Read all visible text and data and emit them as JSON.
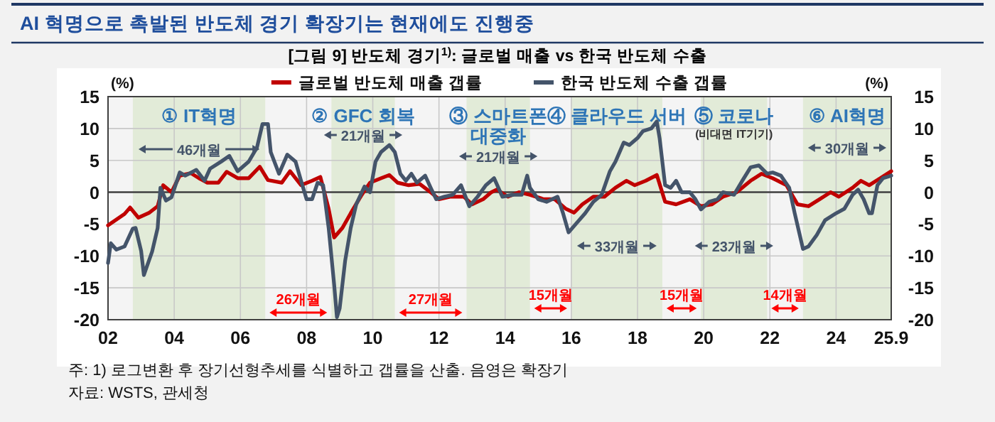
{
  "chart_data": {
    "type": "line",
    "title": "AI 혁명으로 촉발된 반도체 경기 확장기는 현재에도 진행중",
    "subtitle": "[그림 9] 반도체 경기$^{1)}$: 글로벌 매출 vs 한국 반도체 수출",
    "ylabel": "(%)",
    "y2label": "(%)",
    "xlim": [
      "2002-01",
      "2025-09"
    ],
    "ylim": [
      -20,
      15
    ],
    "y2lim": [
      -20,
      15
    ],
    "xticks": [
      {
        "value": "2002",
        "label": "02"
      },
      {
        "value": "2004",
        "label": "04"
      },
      {
        "value": "2006",
        "label": "06"
      },
      {
        "value": "2008",
        "label": "08"
      },
      {
        "value": "2010",
        "label": "10"
      },
      {
        "value": "2012",
        "label": "12"
      },
      {
        "value": "2014",
        "label": "14"
      },
      {
        "value": "2016",
        "label": "16"
      },
      {
        "value": "2018",
        "label": "18"
      },
      {
        "value": "2020",
        "label": "20"
      },
      {
        "value": "2022",
        "label": "22"
      },
      {
        "value": "2024",
        "label": "24"
      },
      {
        "value": "2025-09",
        "label": "25.9"
      }
    ],
    "yticks": [
      -20,
      -15,
      -10,
      -5,
      0,
      5,
      10,
      15
    ],
    "y2ticks": [
      -20,
      -15,
      -10,
      -5,
      0,
      5,
      10,
      15
    ],
    "grid": true,
    "legend": "top",
    "line_style": "solid",
    "series": [
      {
        "name": "글로벌 반도체 매출 갭률",
        "color": "#c00000",
        "x": [
          "2002-01",
          "2002-04",
          "2002-07",
          "2002-09",
          "2002-12",
          "2003-04",
          "2003-07",
          "2003-09",
          "2003-12",
          "2004-03",
          "2004-07",
          "2004-10",
          "2005-01",
          "2005-05",
          "2005-08",
          "2005-12",
          "2006-04",
          "2006-08",
          "2006-11",
          "2007-04",
          "2007-07",
          "2007-11",
          "2008-03",
          "2008-06",
          "2008-09",
          "2008-11",
          "2009-02",
          "2009-05",
          "2009-09",
          "2009-12",
          "2010-04",
          "2010-07",
          "2010-10",
          "2011-02",
          "2011-06",
          "2011-10",
          "2012-01",
          "2012-05",
          "2012-10",
          "2013-01",
          "2013-05",
          "2013-08",
          "2013-10",
          "2014-02",
          "2014-06",
          "2014-10",
          "2015-03",
          "2015-07",
          "2015-11",
          "2016-02",
          "2016-05",
          "2016-09",
          "2017-01",
          "2017-05",
          "2017-09",
          "2017-12",
          "2018-04",
          "2018-08",
          "2018-11",
          "2019-03",
          "2019-08",
          "2019-12",
          "2020-04",
          "2020-08",
          "2021-01",
          "2021-06",
          "2021-10",
          "2022-02",
          "2022-07",
          "2022-11",
          "2023-03",
          "2023-07",
          "2023-11",
          "2024-02",
          "2024-07",
          "2024-10",
          "2025-01",
          "2025-05",
          "2025-09"
        ],
        "values": [
          -5.2,
          -4.3,
          -3.4,
          -2.4,
          -4.0,
          -3.2,
          -2.2,
          1.1,
          0,
          2.6,
          3.0,
          2.2,
          1.5,
          1.5,
          3.2,
          2.2,
          2.2,
          4.0,
          1.9,
          1.5,
          3.3,
          1.1,
          1.8,
          2.4,
          -2.6,
          -7.1,
          -5.6,
          -3.3,
          -0.4,
          1.5,
          2.2,
          2.7,
          1.5,
          1.1,
          1.3,
          0,
          -1.1,
          -0.7,
          -0.7,
          -1.9,
          -1.1,
          0,
          0.4,
          -0.7,
          0,
          -0.4,
          -1.1,
          -1.1,
          -2.6,
          -3.2,
          -1.9,
          -0.7,
          -0.7,
          0.7,
          1.8,
          1.1,
          1.8,
          2.7,
          -1.5,
          -1.9,
          -1.1,
          -2.2,
          -1.9,
          -0.7,
          0,
          1.8,
          2.9,
          2.2,
          1.1,
          -1.9,
          -2.2,
          -1.1,
          0,
          -0.7,
          0.7,
          1.8,
          1.1,
          2.2,
          3.3
        ]
      },
      {
        "name": "한국 반도체 수출 갭률",
        "color": "#44546a",
        "x": [
          "2002-01",
          "2002-02",
          "2002-04",
          "2002-07",
          "2002-10",
          "2002-11",
          "2003-01",
          "2003-02",
          "2003-05",
          "2003-07",
          "2003-08",
          "2003-10",
          "2003-12",
          "2004-03",
          "2004-05",
          "2004-09",
          "2004-12",
          "2005-02",
          "2005-06",
          "2005-09",
          "2005-12",
          "2006-04",
          "2006-07",
          "2006-09",
          "2006-11",
          "2006-12",
          "2007-03",
          "2007-06",
          "2007-09",
          "2007-11",
          "2008-01",
          "2008-03",
          "2008-05",
          "2008-07",
          "2008-09",
          "2008-11",
          "2008-12",
          "2009-01",
          "2009-03",
          "2009-05",
          "2009-07",
          "2009-10",
          "2009-12",
          "2010-02",
          "2010-04",
          "2010-07",
          "2010-09",
          "2010-11",
          "2011-01",
          "2011-03",
          "2011-05",
          "2011-08",
          "2011-10",
          "2011-12",
          "2012-03",
          "2012-06",
          "2012-09",
          "2012-12",
          "2013-03",
          "2013-06",
          "2013-09",
          "2013-12",
          "2014-04",
          "2014-07",
          "2014-09",
          "2014-10",
          "2015-01",
          "2015-04",
          "2015-08",
          "2015-10",
          "2015-12",
          "2016-03",
          "2016-06",
          "2016-09",
          "2016-12",
          "2017-03",
          "2017-05",
          "2017-08",
          "2017-10",
          "2018-01",
          "2018-03",
          "2018-06",
          "2018-08",
          "2018-09",
          "2018-11",
          "2019-01",
          "2019-03",
          "2019-05",
          "2019-08",
          "2019-10",
          "2019-12",
          "2020-03",
          "2020-06",
          "2020-08",
          "2020-12",
          "2021-03",
          "2021-06",
          "2021-09",
          "2021-12",
          "2022-02",
          "2022-05",
          "2022-08",
          "2022-10",
          "2023-01",
          "2023-03",
          "2023-06",
          "2023-09",
          "2024-01",
          "2024-04",
          "2024-07",
          "2024-09",
          "2024-11",
          "2025-01",
          "2025-02",
          "2025-04",
          "2025-06",
          "2025-09"
        ],
        "values": [
          -11.1,
          -8,
          -9,
          -8.5,
          -5.7,
          -5.6,
          -9.2,
          -13,
          -9.3,
          -5.6,
          0.7,
          -1.3,
          -0.8,
          3.1,
          2.6,
          3.5,
          1.8,
          3.7,
          4.8,
          5.7,
          3.3,
          4.8,
          7.0,
          10.7,
          10.7,
          6.3,
          2.9,
          5.9,
          4.8,
          1.8,
          -1.1,
          -1.1,
          1.5,
          1.1,
          -5.6,
          -14.5,
          -19.6,
          -18.2,
          -10.7,
          -5.6,
          -1.9,
          0.9,
          0,
          4.8,
          6.3,
          7.4,
          6.3,
          2.9,
          1.8,
          2.9,
          1.5,
          2.6,
          0.7,
          -1.1,
          -0.7,
          -0.4,
          1.1,
          -2.2,
          -0.7,
          1.1,
          2.2,
          -0.7,
          -0.4,
          -0.4,
          2.6,
          0.7,
          -1.1,
          -1.5,
          -0.7,
          -3.3,
          -6.3,
          -4.8,
          -3.3,
          -1.5,
          -0.4,
          3.3,
          4.8,
          7.8,
          7.4,
          8.5,
          9.6,
          10.0,
          11.1,
          8.5,
          1.1,
          0.7,
          1.8,
          0,
          0,
          -1.1,
          -2.7,
          -1.5,
          -1.1,
          0,
          -0.4,
          1.8,
          3.9,
          4.2,
          2.9,
          3.1,
          2.6,
          0.7,
          -3.3,
          -8.9,
          -8.5,
          -6.7,
          -4.4,
          -3.3,
          -2.6,
          -0.4,
          0.4,
          -1.1,
          -3.3,
          -3.3,
          1.1,
          2.2,
          2.6
        ]
      }
    ],
    "bands": [
      {
        "axis": "x",
        "from": "2002-10",
        "to": "2006-10",
        "label": "① IT혁명",
        "color": "#e2ebd8"
      },
      {
        "axis": "x",
        "from": "2008-10",
        "to": "2010-09",
        "label": "② GFC 회복",
        "color": "#e2ebd8"
      },
      {
        "axis": "x",
        "from": "2012-11",
        "to": "2014-10",
        "label": "③ 스마트폰\n대중화",
        "color": "#e2ebd8"
      },
      {
        "axis": "x",
        "from": "2016-01",
        "to": "2018-10",
        "label": "④ 클라우드 서버",
        "color": "#e2ebd8"
      },
      {
        "axis": "x",
        "from": "2019-12",
        "to": "2021-12",
        "label": "⑤ 코로나\n(비대면 IT기기)",
        "color": "#e2ebd8"
      },
      {
        "axis": "x",
        "from": "2023-01",
        "to": "2025-09",
        "label": "⑥ AI혁명",
        "color": "#e2ebd8"
      }
    ],
    "ref_lines": [
      {
        "axis": "y",
        "value": 0,
        "color": "#404040",
        "line_style": "solid"
      }
    ],
    "annotations": [
      "46개월",
      "21개월",
      "21개월",
      "33개월",
      "23개월",
      "30개월",
      "26개월",
      "27개월",
      "15개월",
      "15개월",
      "14개월",
      "주: 1) 로그변환 후 장기선형추세를 식별하고 갭률을 산출. 음영은 확장기",
      "자료: WSTS, 관세청"
    ]
  }
}
